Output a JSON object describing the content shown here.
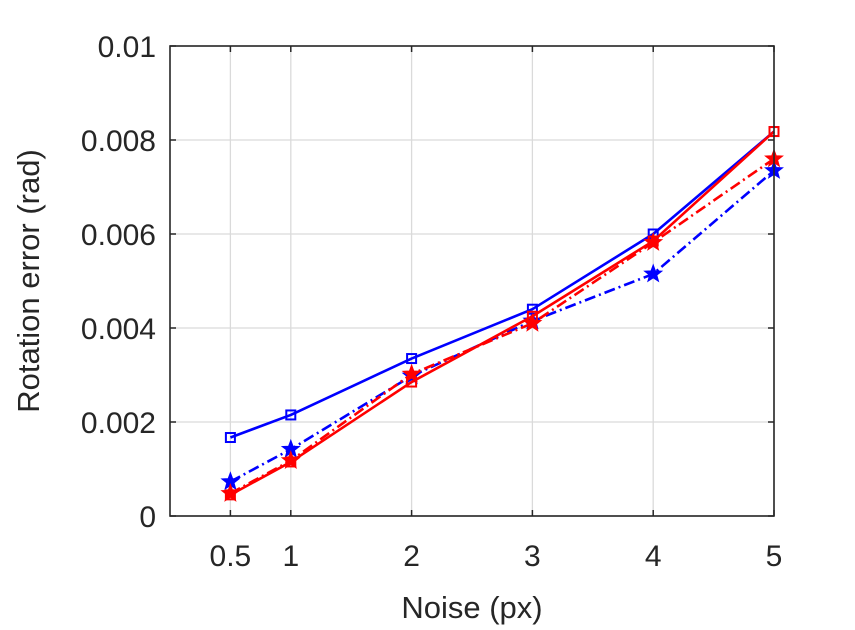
{
  "chart_data": {
    "type": "line",
    "xlabel": "Noise (px)",
    "ylabel": "Rotation error (rad)",
    "xlim": [
      0,
      5
    ],
    "ylim": [
      0,
      0.01
    ],
    "xticks": [
      0.5,
      1,
      2,
      3,
      4,
      5
    ],
    "xtick_labels": [
      "0.5",
      "1",
      "2",
      "3",
      "4",
      "5"
    ],
    "yticks": [
      0,
      0.002,
      0.004,
      0.006,
      0.008,
      0.01
    ],
    "ytick_labels": [
      "0",
      "0.002",
      "0.004",
      "0.006",
      "0.008",
      "0.01"
    ],
    "grid": true,
    "legend": "none",
    "x": [
      0.5,
      1,
      2,
      3,
      4,
      5
    ],
    "series": [
      {
        "color": "#0000ff",
        "line_style": "solid",
        "marker": "square",
        "values": [
          0.00167,
          0.00215,
          0.00335,
          0.0044,
          0.006,
          0.00818
        ]
      },
      {
        "color": "#0000ff",
        "line_style": "dashdot",
        "marker": "star",
        "values": [
          0.00073,
          0.00142,
          0.00298,
          0.00415,
          0.00515,
          0.00735
        ]
      },
      {
        "color": "#ff0000",
        "line_style": "solid",
        "marker": "square",
        "values": [
          0.00045,
          0.00115,
          0.00285,
          0.00425,
          0.00585,
          0.00818
        ]
      },
      {
        "color": "#ff0000",
        "line_style": "dashdot",
        "marker": "star",
        "values": [
          0.00048,
          0.00118,
          0.00302,
          0.0041,
          0.00582,
          0.0076
        ]
      }
    ]
  }
}
